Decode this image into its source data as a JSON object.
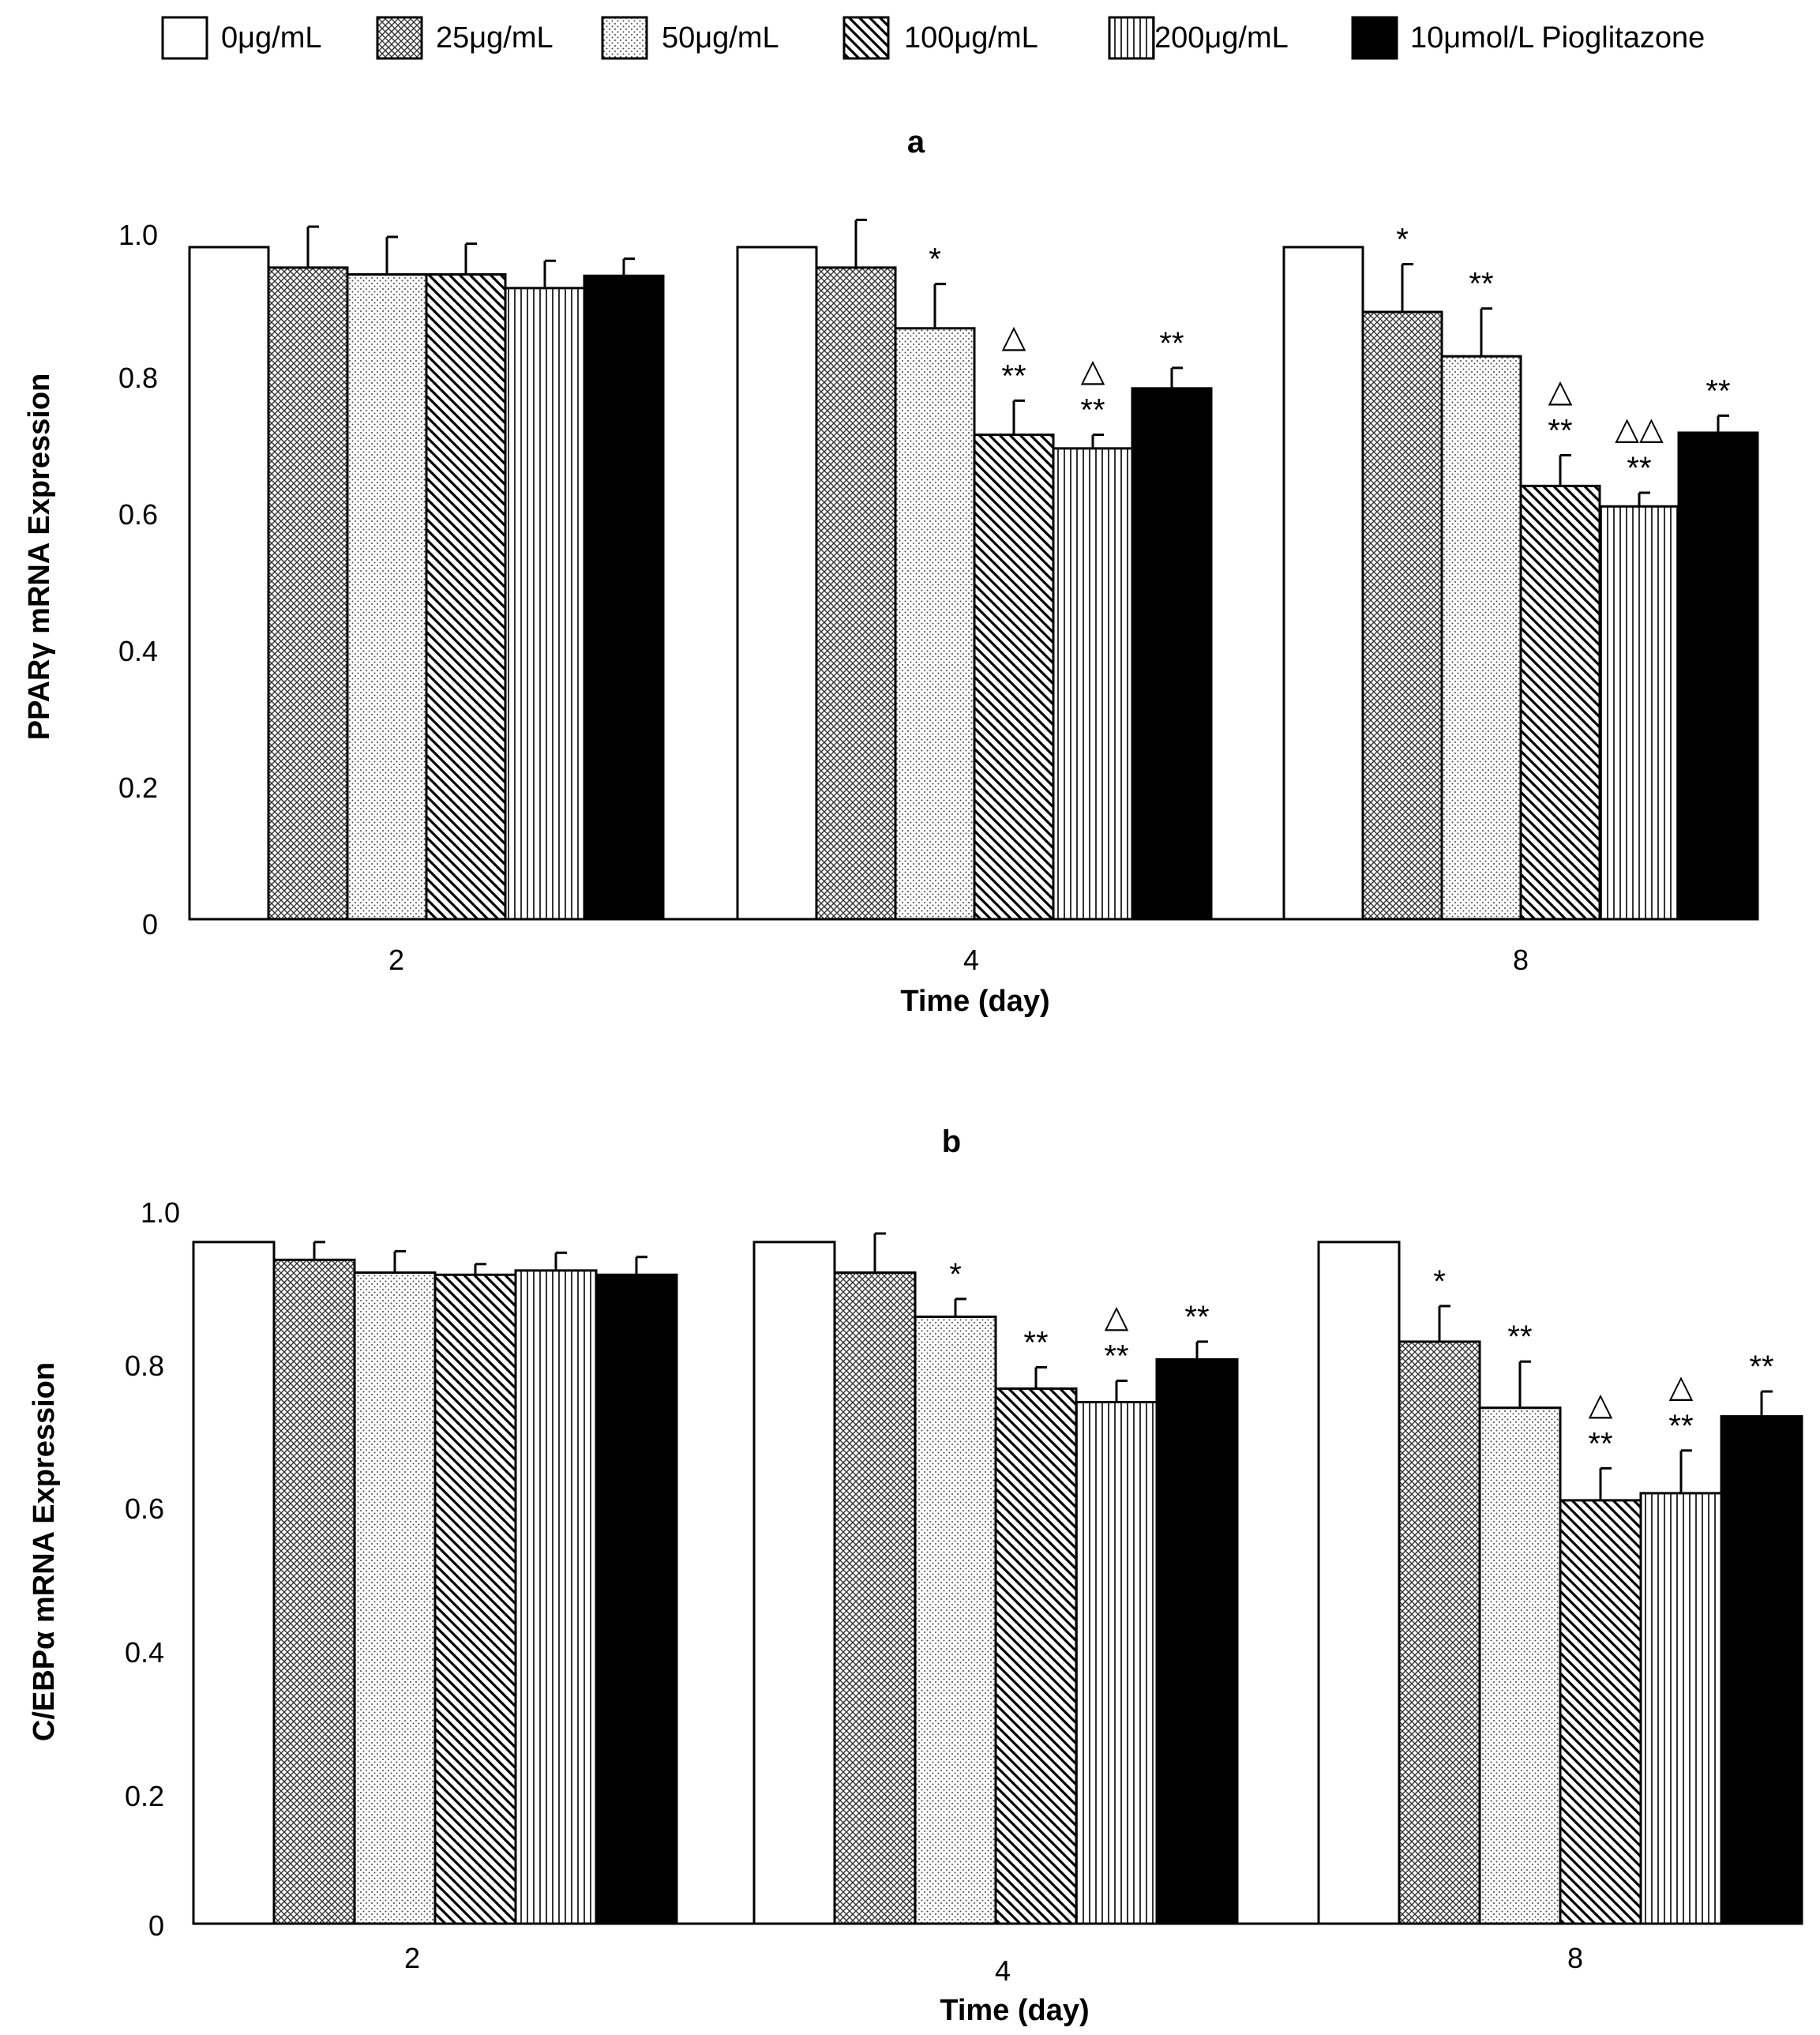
{
  "legend": [
    {
      "label": "0μg/mL",
      "pattern": "white"
    },
    {
      "label": "25μg/mL",
      "pattern": "crosshatch"
    },
    {
      "label": "50μg/mL",
      "pattern": "dots"
    },
    {
      "label": "100μg/mL",
      "pattern": "diagonal"
    },
    {
      "label": "200μg/mL",
      "pattern": "vertical"
    },
    {
      "label": "10μmol/L Pioglitazone",
      "pattern": "black"
    }
  ],
  "colors": {
    "bar_stroke": "#000000",
    "black_fill": "#000000",
    "white_fill": "#ffffff"
  },
  "chart_data": [
    {
      "type": "bar",
      "title": "a",
      "xlabel": "Time (day)",
      "ylabel": "PPARγ mRNA Expression",
      "ylim": [
        0,
        1.0
      ],
      "yticks": [
        "0",
        "0.2",
        "0.4",
        "0.6",
        "0.8",
        "1.0"
      ],
      "ytick_values": [
        0,
        0.2,
        0.4,
        0.6,
        0.8,
        1.0
      ],
      "categories": [
        "2",
        "4",
        "8"
      ],
      "series": [
        {
          "name": "0μg/mL",
          "values": [
            0.985,
            0.985,
            0.985
          ],
          "errors": [
            0,
            0,
            0
          ],
          "annotations": [
            "",
            "",
            ""
          ]
        },
        {
          "name": "25μg/mL",
          "values": [
            0.955,
            0.955,
            0.89
          ],
          "errors": [
            0.06,
            0.07,
            0.07
          ],
          "annotations": [
            "",
            "",
            "*"
          ]
        },
        {
          "name": "50μg/mL",
          "values": [
            0.945,
            0.866,
            0.825
          ],
          "errors": [
            0.055,
            0.065,
            0.07
          ],
          "annotations": [
            "",
            "*",
            "**"
          ]
        },
        {
          "name": "100μg/mL",
          "values": [
            0.945,
            0.71,
            0.635
          ],
          "errors": [
            0.045,
            0.05,
            0.045
          ],
          "annotations": [
            "",
            "△\n**",
            "△\n**"
          ]
        },
        {
          "name": "200μg/mL",
          "values": [
            0.925,
            0.69,
            0.605
          ],
          "errors": [
            0.04,
            0.02,
            0.02
          ],
          "annotations": [
            "",
            "△\n**",
            "△△\n**"
          ]
        },
        {
          "name": "10μmol/L Pioglitazone",
          "values": [
            0.943,
            0.778,
            0.713
          ],
          "errors": [
            0.025,
            0.03,
            0.025
          ],
          "annotations": [
            "",
            "**",
            "**"
          ]
        }
      ]
    },
    {
      "type": "bar",
      "title": "b",
      "xlabel": "Time (day)",
      "ylabel": "C/EBPα mRNA Expression",
      "ylim": [
        0,
        1.0
      ],
      "yticks": [
        "0",
        "0.2",
        "0.4",
        "0.6",
        "0.8",
        "1.0"
      ],
      "ytick_values": [
        0,
        0.2,
        0.4,
        0.6,
        0.8,
        1.0
      ],
      "categories": [
        "2",
        "4",
        "8"
      ],
      "series": [
        {
          "name": "0μg/mL",
          "values": [
            0.958,
            0.958,
            0.958
          ],
          "errors": [
            0,
            0,
            0
          ],
          "annotations": [
            "",
            "",
            ""
          ]
        },
        {
          "name": "25μg/mL",
          "values": [
            0.933,
            0.915,
            0.818
          ],
          "errors": [
            0.025,
            0.055,
            0.05
          ],
          "annotations": [
            "",
            "",
            "*"
          ]
        },
        {
          "name": "50μg/mL",
          "values": [
            0.915,
            0.853,
            0.725
          ],
          "errors": [
            0.03,
            0.025,
            0.065
          ],
          "annotations": [
            "",
            "*",
            "**"
          ]
        },
        {
          "name": "100μg/mL",
          "values": [
            0.912,
            0.752,
            0.595
          ],
          "errors": [
            0.015,
            0.03,
            0.045
          ],
          "annotations": [
            "",
            "**",
            "△\n**"
          ]
        },
        {
          "name": "200μg/mL",
          "values": [
            0.918,
            0.733,
            0.605
          ],
          "errors": [
            0.025,
            0.03,
            0.06
          ],
          "annotations": [
            "",
            "△\n**",
            "△\n**"
          ]
        },
        {
          "name": "10μmol/L Pioglitazone",
          "values": [
            0.912,
            0.793,
            0.713
          ],
          "errors": [
            0.025,
            0.025,
            0.035
          ],
          "annotations": [
            "",
            "**",
            "**"
          ]
        }
      ]
    }
  ]
}
